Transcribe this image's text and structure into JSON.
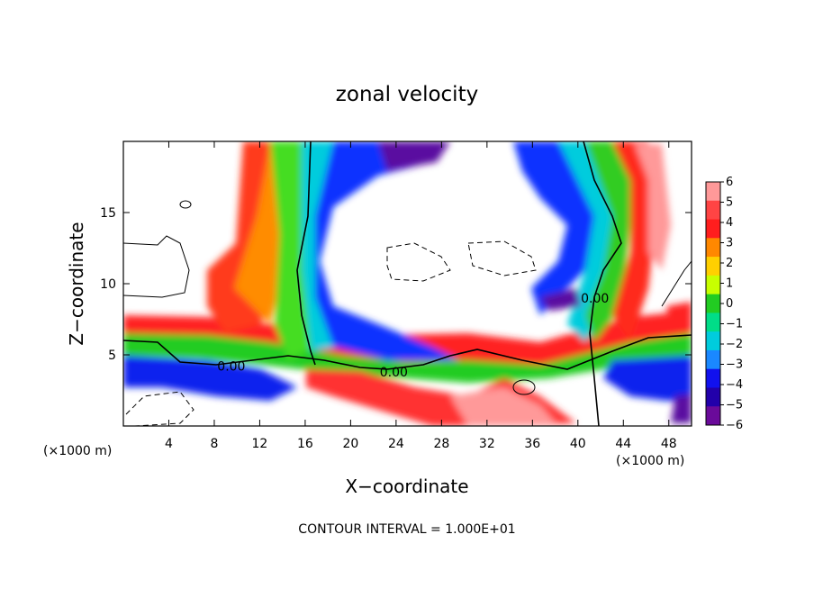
{
  "chart_data": {
    "type": "heatmap",
    "title": "zonal velocity",
    "xlabel": "X−coordinate",
    "ylabel": "Z−coordinate",
    "x_units_label": "(×1000 m)",
    "y_units_label": "(×1000 m)",
    "footer": "CONTOUR INTERVAL = 1.000E+01",
    "xlim": [
      0,
      50
    ],
    "ylim": [
      0,
      20
    ],
    "x_ticks": [
      4,
      8,
      12,
      16,
      20,
      24,
      28,
      32,
      36,
      40,
      44,
      48
    ],
    "y_ticks": [
      5,
      10,
      15
    ],
    "colorbar": {
      "ticks": [
        6,
        5,
        4,
        3,
        2,
        1,
        0,
        -1,
        -2,
        -3,
        -4,
        -5,
        -6
      ],
      "tick_labels": [
        "6",
        "5",
        "4",
        "3",
        "2",
        "1",
        "0",
        "−1",
        "−2",
        "−3",
        "−4",
        "−5",
        "−6"
      ],
      "colors": [
        "#ff9999",
        "#ff4444",
        "#ff1e1e",
        "#ff8800",
        "#ffd000",
        "#c8ff00",
        "#22cc22",
        "#00dd88",
        "#00ccdd",
        "#1a88ff",
        "#1111ee",
        "#2200aa",
        "#6a0a9a"
      ]
    },
    "contour_labels": [
      {
        "text": "0.00",
        "x": 9.5,
        "z": 4.2
      },
      {
        "text": "0.00",
        "x": 23.8,
        "z": 3.8
      },
      {
        "text": "0.00",
        "x": 41.5,
        "z": 9.0
      }
    ],
    "grid": false,
    "legend": "none"
  }
}
